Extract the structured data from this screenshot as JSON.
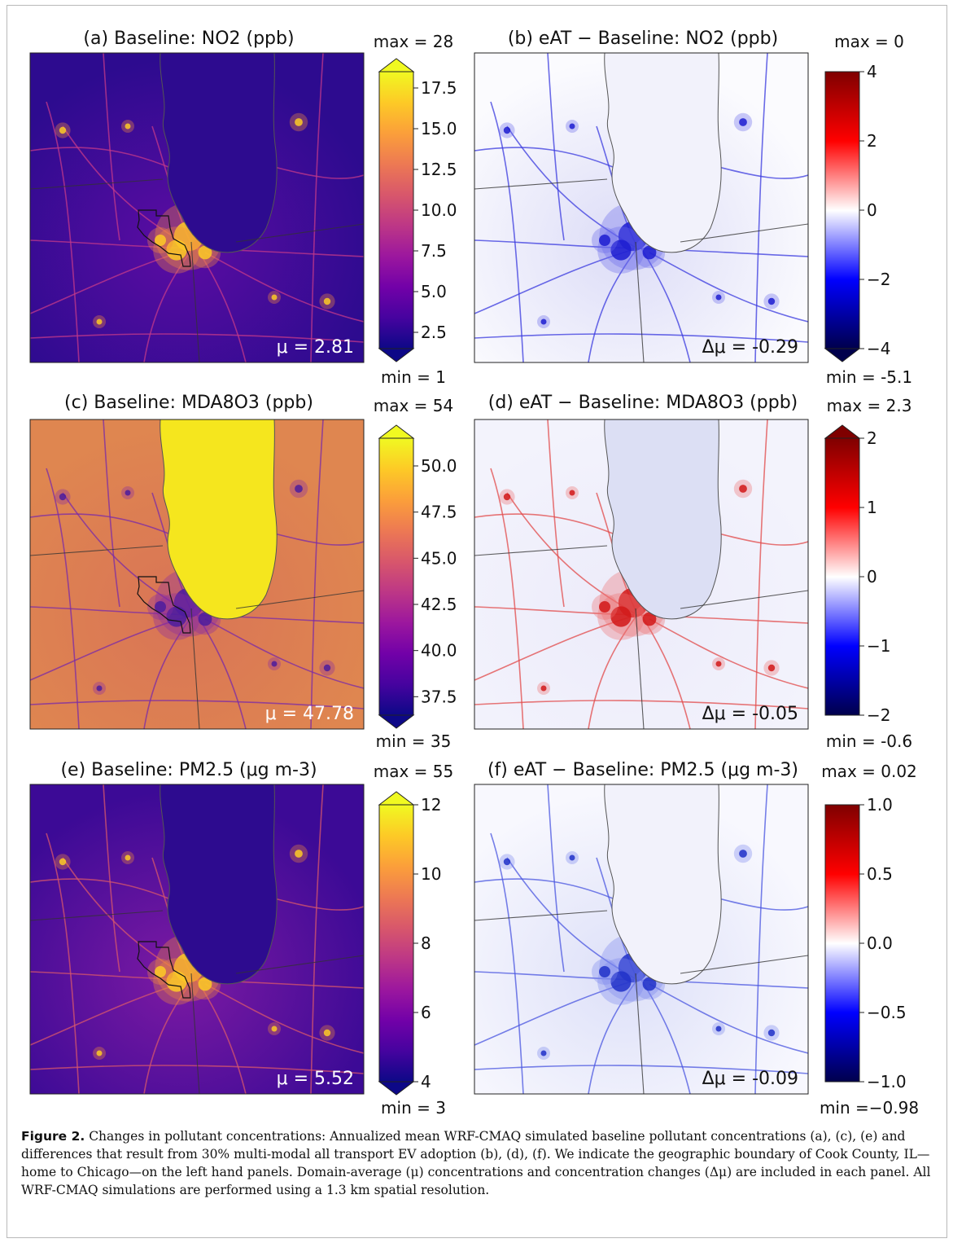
{
  "figure": {
    "label": "Figure 2.",
    "caption_text": " Changes in pollutant concentrations: Annualized mean WRF-CMAQ simulated baseline pollutant concentrations (a), (c), (e) and differences that result from 30% multi-modal all transport EV adoption (b), (d), (f). We indicate the geographic boundary of Cook County, IL—home to Chicago—on the left hand panels. Domain-average (μ) concentrations and concentration changes (Δμ) are included in each panel. All WRF-CMAQ simulations are performed using a 1.3 km spatial resolution."
  },
  "panels": [
    {
      "id": "a",
      "title": "(a) Baseline: NO2 (ppb)",
      "colormap": "plasma",
      "stat": "μ = 2.81",
      "stat_color": "#ffffff",
      "max_label": "max = 28",
      "min_label": "min = 1",
      "ticks": [
        "17.5",
        "15.0",
        "12.5",
        "10.0",
        "7.5",
        "5.0",
        "2.5"
      ],
      "tick_values": [
        17.5,
        15.0,
        12.5,
        10.0,
        7.5,
        5.0,
        2.5
      ],
      "cbar_range": [
        1.5,
        18.5
      ],
      "extend": "both"
    },
    {
      "id": "b",
      "title": "(b) eAT − Baseline: NO2 (ppb)",
      "colormap": "seismic",
      "stat": "Δμ = -0.29",
      "stat_color": "#111111",
      "max_label": "max = 0",
      "min_label": "min = -5.1",
      "ticks": [
        "4",
        "2",
        "0",
        "−2",
        "−4"
      ],
      "tick_values": [
        4,
        2,
        0,
        -2,
        -4
      ],
      "cbar_range": [
        -4,
        4
      ],
      "extend": "min"
    },
    {
      "id": "c",
      "title": "(c) Baseline: MDA8O3 (ppb)",
      "colormap": "plasma",
      "stat": "μ = 47.78",
      "stat_color": "#ffffff",
      "max_label": "max = 54",
      "min_label": "min = 35",
      "ticks": [
        "50.0",
        "47.5",
        "45.0",
        "42.5",
        "40.0",
        "37.5"
      ],
      "tick_values": [
        50.0,
        47.5,
        45.0,
        42.5,
        40.0,
        37.5
      ],
      "cbar_range": [
        36.5,
        51.5
      ],
      "extend": "both"
    },
    {
      "id": "d",
      "title": "(d) eAT − Baseline: MDA8O3 (ppb)",
      "colormap": "seismic",
      "stat": "Δμ = -0.05",
      "stat_color": "#111111",
      "max_label": "max = 2.3",
      "min_label": "min = -0.6",
      "ticks": [
        "2",
        "1",
        "0",
        "−1",
        "−2"
      ],
      "tick_values": [
        2,
        1,
        0,
        -1,
        -2
      ],
      "cbar_range": [
        -2,
        2
      ],
      "extend": "max"
    },
    {
      "id": "e",
      "title": "(e) Baseline: PM2.5 (μg m-3)",
      "colormap": "plasma",
      "stat": "μ = 5.52",
      "stat_color": "#ffffff",
      "max_label": "max = 55",
      "min_label": "min = 3",
      "ticks": [
        "12",
        "10",
        "8",
        "6",
        "4"
      ],
      "tick_values": [
        12,
        10,
        8,
        6,
        4
      ],
      "cbar_range": [
        4,
        12
      ],
      "extend": "both"
    },
    {
      "id": "f",
      "title": "(f) eAT − Baseline: PM2.5 (μg m-3)",
      "colormap": "seismic",
      "stat": "Δμ = -0.09",
      "stat_color": "#111111",
      "max_label": "max = 0.02",
      "min_label": "min =−0.98",
      "ticks": [
        "1.0",
        "0.5",
        "0.0",
        "−0.5",
        "−1.0"
      ],
      "tick_values": [
        1.0,
        0.5,
        0.0,
        -0.5,
        -1.0
      ],
      "cbar_range": [
        -1,
        1
      ],
      "extend": "none"
    }
  ],
  "colors": {
    "plasma": [
      "#0d0887",
      "#46039f",
      "#7201a8",
      "#9c179e",
      "#bd3786",
      "#d8576b",
      "#ed7953",
      "#fb9f3a",
      "#fdca26",
      "#f0f921"
    ],
    "seismic": [
      "#00004c",
      "#0000ff",
      "#ffffff",
      "#ff0000",
      "#7f0000"
    ],
    "lake_dark": "#2d0b8f",
    "lake_ozone": "#f5e61e",
    "lake_diff": "#f2f2fb"
  }
}
